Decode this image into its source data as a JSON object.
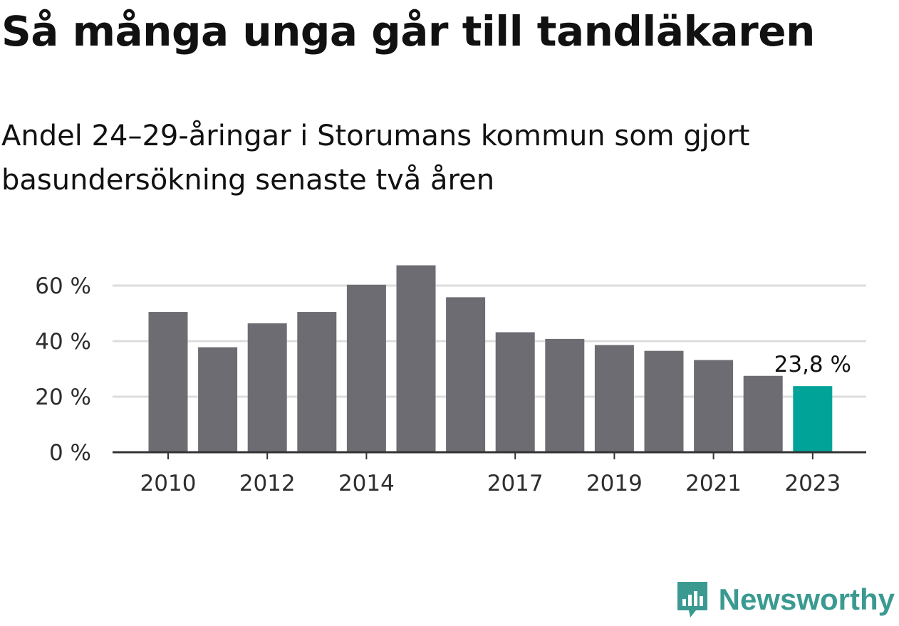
{
  "header": {
    "title": "Så många unga går till tandläkaren",
    "subtitle": "Andel 24–29-åringar i Storumans kommun som gjort basundersökning senaste två åren"
  },
  "brand": {
    "name": "Newsworthy",
    "color": "#3a9a91"
  },
  "colors": {
    "bar": "#6d6c72",
    "highlight": "#00a398",
    "grid": "#dddddd",
    "axis": "#333333"
  },
  "chart_data": {
    "type": "bar",
    "title": "Så många unga går till tandläkaren",
    "subtitle": "Andel 24–29-åringar i Storumans kommun som gjort basundersökning senaste två åren",
    "categories": [
      "2010",
      "2011",
      "2012",
      "2013",
      "2014",
      "2015",
      "2016",
      "2017",
      "2018",
      "2019",
      "2020",
      "2021",
      "2022",
      "2023"
    ],
    "values": [
      50.5,
      37.8,
      46.4,
      50.5,
      60.3,
      67.3,
      55.8,
      43.2,
      40.8,
      38.6,
      36.5,
      33.2,
      27.5,
      23.8
    ],
    "x_tick_labels": [
      "2010",
      "2012",
      "2014",
      "2017",
      "2019",
      "2021",
      "2023"
    ],
    "y_ticks": [
      0,
      20,
      40,
      60
    ],
    "y_tick_labels": [
      "0 %",
      "20 %",
      "40 %",
      "60 %"
    ],
    "ylim": [
      0,
      70
    ],
    "highlight_index": 13,
    "highlight_label": "23,8 %",
    "xlabel": "",
    "ylabel": "",
    "grid": true
  }
}
